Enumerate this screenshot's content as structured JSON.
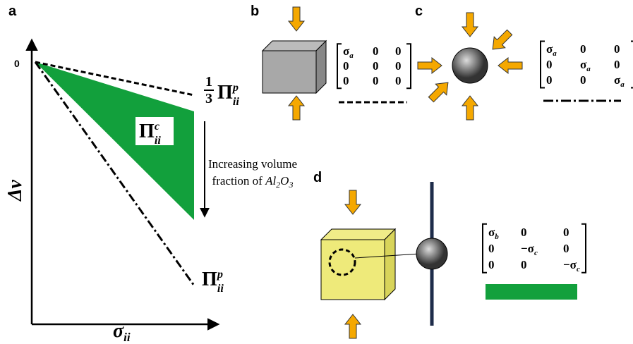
{
  "panel_a": {
    "label": "a",
    "origin": "0",
    "y_axis": "Δv",
    "x_axis": {
      "base": "σ",
      "sub": "ii"
    },
    "line_third": {
      "num": "1",
      "den": "3",
      "base": "Π",
      "sub": "ii",
      "sup": "p"
    },
    "region": {
      "base": "Π",
      "sub": "ii",
      "sup": "c"
    },
    "line_full": {
      "base": "Π",
      "sub": "ii",
      "sup": "p"
    },
    "note": {
      "line1": "Increasing volume",
      "line2": "fraction of ",
      "chem": [
        "Al",
        "2",
        "O",
        "3"
      ]
    }
  },
  "panel_b": {
    "label": "b",
    "matrix": [
      [
        {
          "base": "σ",
          "sub": "a"
        },
        "0",
        "0"
      ],
      [
        "0",
        "0",
        "0"
      ],
      [
        "0",
        "0",
        "0"
      ]
    ]
  },
  "panel_c": {
    "label": "c",
    "matrix": [
      [
        {
          "base": "σ",
          "sub": "a"
        },
        "0",
        "0"
      ],
      [
        "0",
        {
          "base": "σ",
          "sub": "a"
        },
        "0"
      ],
      [
        "0",
        "0",
        {
          "base": "σ",
          "sub": "a"
        }
      ]
    ]
  },
  "panel_d": {
    "label": "d",
    "matrix": [
      [
        {
          "base": "σ",
          "sub": "b"
        },
        "0",
        "0"
      ],
      [
        "0",
        {
          "base": "−σ",
          "sub": "c"
        },
        "0"
      ],
      [
        "0",
        "0",
        {
          "base": "−σ",
          "sub": "c"
        }
      ]
    ]
  }
}
